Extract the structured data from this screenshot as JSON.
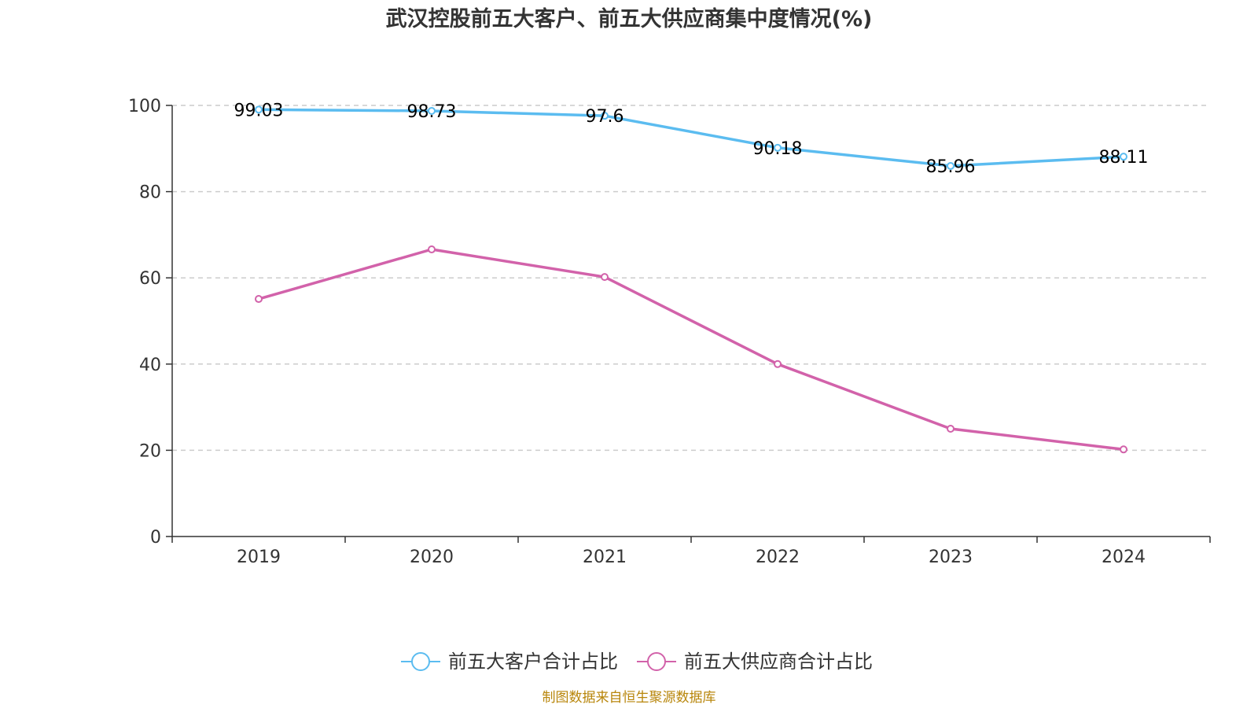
{
  "chart_data": {
    "type": "line",
    "title": "武汉控股前五大客户、前五大供应商集中度情况(%)",
    "categories": [
      "2019",
      "2020",
      "2021",
      "2022",
      "2023",
      "2024"
    ],
    "ylim": [
      0,
      100
    ],
    "yticks": [
      0,
      20,
      40,
      60,
      80,
      100
    ],
    "grid": true,
    "xlabel": "",
    "ylabel": "",
    "legend_position": "bottom",
    "series": [
      {
        "name": "前五大客户合计占比",
        "color": "#5bbcf0",
        "values": [
          99.03,
          98.73,
          97.6,
          90.18,
          85.96,
          88.11
        ],
        "labels": [
          "99.03",
          "98.73",
          "97.6",
          "90.18",
          "85.96",
          "88.11"
        ]
      },
      {
        "name": "前五大供应商合计占比",
        "color": "#d262aa",
        "values": [
          55.1,
          66.6,
          60.2,
          40.0,
          25.0,
          20.2
        ]
      }
    ]
  },
  "footer": {
    "source": "制图数据来自恒生聚源数据库"
  }
}
